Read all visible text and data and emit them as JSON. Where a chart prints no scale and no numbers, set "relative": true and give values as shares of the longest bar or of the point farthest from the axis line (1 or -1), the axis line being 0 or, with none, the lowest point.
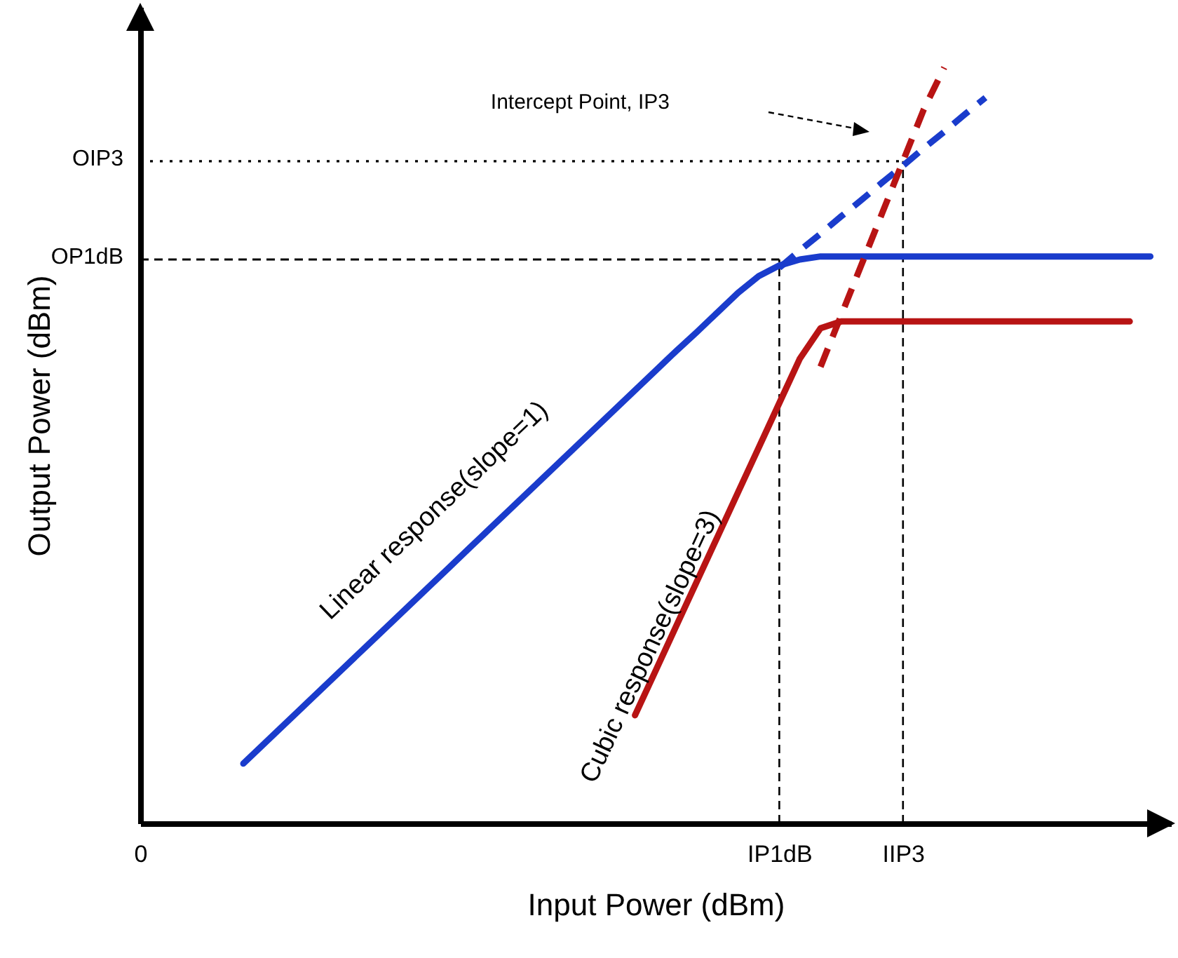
{
  "chart_data": {
    "type": "line",
    "relative": true,
    "xlabel": "Input Power (dBm)",
    "ylabel": "Output Power (dBm)",
    "categories": [
      "0",
      null,
      null,
      null,
      null,
      null,
      null,
      null,
      null,
      null,
      null,
      null,
      null,
      null,
      null,
      null,
      null,
      null,
      null,
      null,
      null,
      null,
      null,
      null,
      null,
      null,
      null,
      null,
      null,
      null,
      null,
      "IP1dB",
      null,
      null,
      null,
      null,
      null,
      "IIP3",
      null,
      null,
      null,
      null,
      null,
      null,
      null,
      null,
      null,
      null,
      null,
      null,
      null
    ],
    "series": [
      {
        "name": "Linear response(slope=1)",
        "color": "#1a3ccc",
        "line_style": "solid",
        "values": [
          null,
          null,
          null,
          null,
          null,
          0.079,
          0.105,
          0.131,
          0.157,
          0.183,
          0.209,
          0.235,
          0.261,
          0.287,
          0.313,
          0.339,
          0.365,
          0.391,
          0.417,
          0.443,
          0.469,
          0.495,
          0.521,
          0.547,
          0.573,
          0.599,
          0.625,
          0.65,
          0.676,
          0.702,
          0.724,
          0.738,
          0.746,
          0.75,
          0.75,
          0.75,
          0.75,
          0.75,
          0.75,
          0.75,
          0.75,
          0.75,
          0.75,
          0.75,
          0.75,
          0.75,
          0.75,
          0.75,
          0.75,
          0.75,
          null
        ]
      },
      {
        "color": "#1a3ccc",
        "line_style": "dashed",
        "values": [
          null,
          null,
          null,
          null,
          null,
          null,
          null,
          null,
          null,
          null,
          null,
          null,
          null,
          null,
          null,
          null,
          null,
          null,
          null,
          null,
          null,
          null,
          null,
          null,
          null,
          null,
          null,
          null,
          null,
          null,
          null,
          0.735,
          0.758,
          0.78,
          0.803,
          0.825,
          0.848,
          0.87,
          0.893,
          0.915,
          0.938,
          0.96,
          null,
          null,
          null,
          null,
          null,
          null,
          null,
          null,
          null
        ]
      },
      {
        "name": "Cubic response(slope=3)",
        "color": "#b81414",
        "line_style": "solid",
        "values": [
          null,
          null,
          null,
          null,
          null,
          null,
          null,
          null,
          null,
          null,
          null,
          null,
          null,
          null,
          null,
          null,
          null,
          null,
          null,
          null,
          null,
          null,
          null,
          null,
          0.143,
          0.202,
          0.261,
          0.32,
          0.379,
          0.438,
          0.497,
          0.556,
          0.615,
          0.655,
          0.664,
          0.664,
          0.664,
          0.664,
          0.664,
          0.664,
          0.664,
          0.664,
          0.664,
          0.664,
          0.664,
          0.664,
          0.664,
          0.664,
          0.664,
          null,
          null
        ]
      },
      {
        "color": "#b81414",
        "line_style": "dashed",
        "values": [
          null,
          null,
          null,
          null,
          null,
          null,
          null,
          null,
          null,
          null,
          null,
          null,
          null,
          null,
          null,
          null,
          null,
          null,
          null,
          null,
          null,
          null,
          null,
          null,
          null,
          null,
          null,
          null,
          null,
          null,
          null,
          null,
          null,
          0.604,
          0.672,
          0.74,
          0.808,
          0.876,
          0.944,
          1,
          null,
          null,
          null,
          null,
          null,
          null,
          null,
          null,
          null,
          null,
          null
        ]
      }
    ],
    "ref_lines": [
      {
        "axis": "x",
        "value": "IP1dB",
        "line_style": "dashed"
      },
      {
        "axis": "x",
        "value": "IIP3",
        "line_style": "dashed"
      },
      {
        "axis": "y",
        "value": 0.746,
        "label": "OP1dB",
        "line_style": "dashed"
      },
      {
        "axis": "y",
        "value": 0.876,
        "label": "OIP3",
        "line_style": "dotted"
      }
    ],
    "annotations": [
      "Intercept Point, IP3"
    ]
  }
}
